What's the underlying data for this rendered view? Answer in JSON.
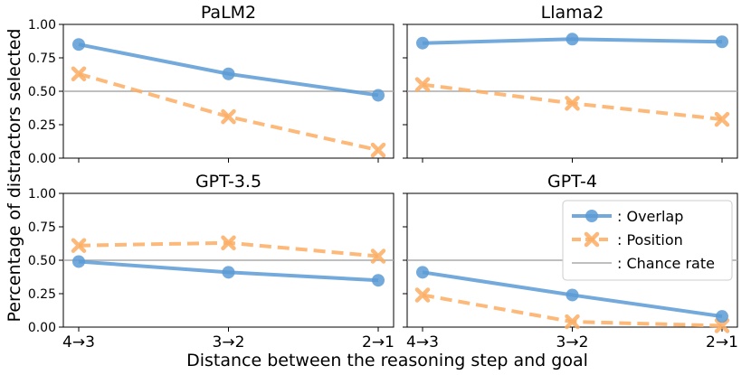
{
  "chart_data": {
    "type": "line",
    "ylabel": "Percentage of distractors selected",
    "xlabel": "Distance between the reasoning step and goal",
    "categories": [
      "4→3",
      "3→2",
      "2→1"
    ],
    "ylim": [
      0,
      1
    ],
    "yticks": [
      "0.00",
      "0.25",
      "0.50",
      "0.75",
      "1.00"
    ],
    "chance_rate": 0.5,
    "colors": {
      "overlap": "#5b9bd5",
      "position": "#fbad63",
      "chance": "#aaaaaa"
    },
    "legend": {
      "location": "top-right of GPT-4 panel",
      "overlap": ": Overlap",
      "position": ": Position",
      "chance": ": Chance rate"
    },
    "panels": [
      {
        "title": "PaLM2",
        "overlap": [
          0.85,
          0.63,
          0.47
        ],
        "position": [
          0.63,
          0.31,
          0.06
        ]
      },
      {
        "title": "Llama2",
        "overlap": [
          0.86,
          0.89,
          0.87
        ],
        "position": [
          0.55,
          0.41,
          0.29
        ]
      },
      {
        "title": "GPT-3.5",
        "overlap": [
          0.49,
          0.41,
          0.35
        ],
        "position": [
          0.61,
          0.63,
          0.53
        ]
      },
      {
        "title": "GPT-4",
        "overlap": [
          0.41,
          0.24,
          0.08
        ],
        "position": [
          0.24,
          0.04,
          0.01
        ]
      }
    ]
  }
}
